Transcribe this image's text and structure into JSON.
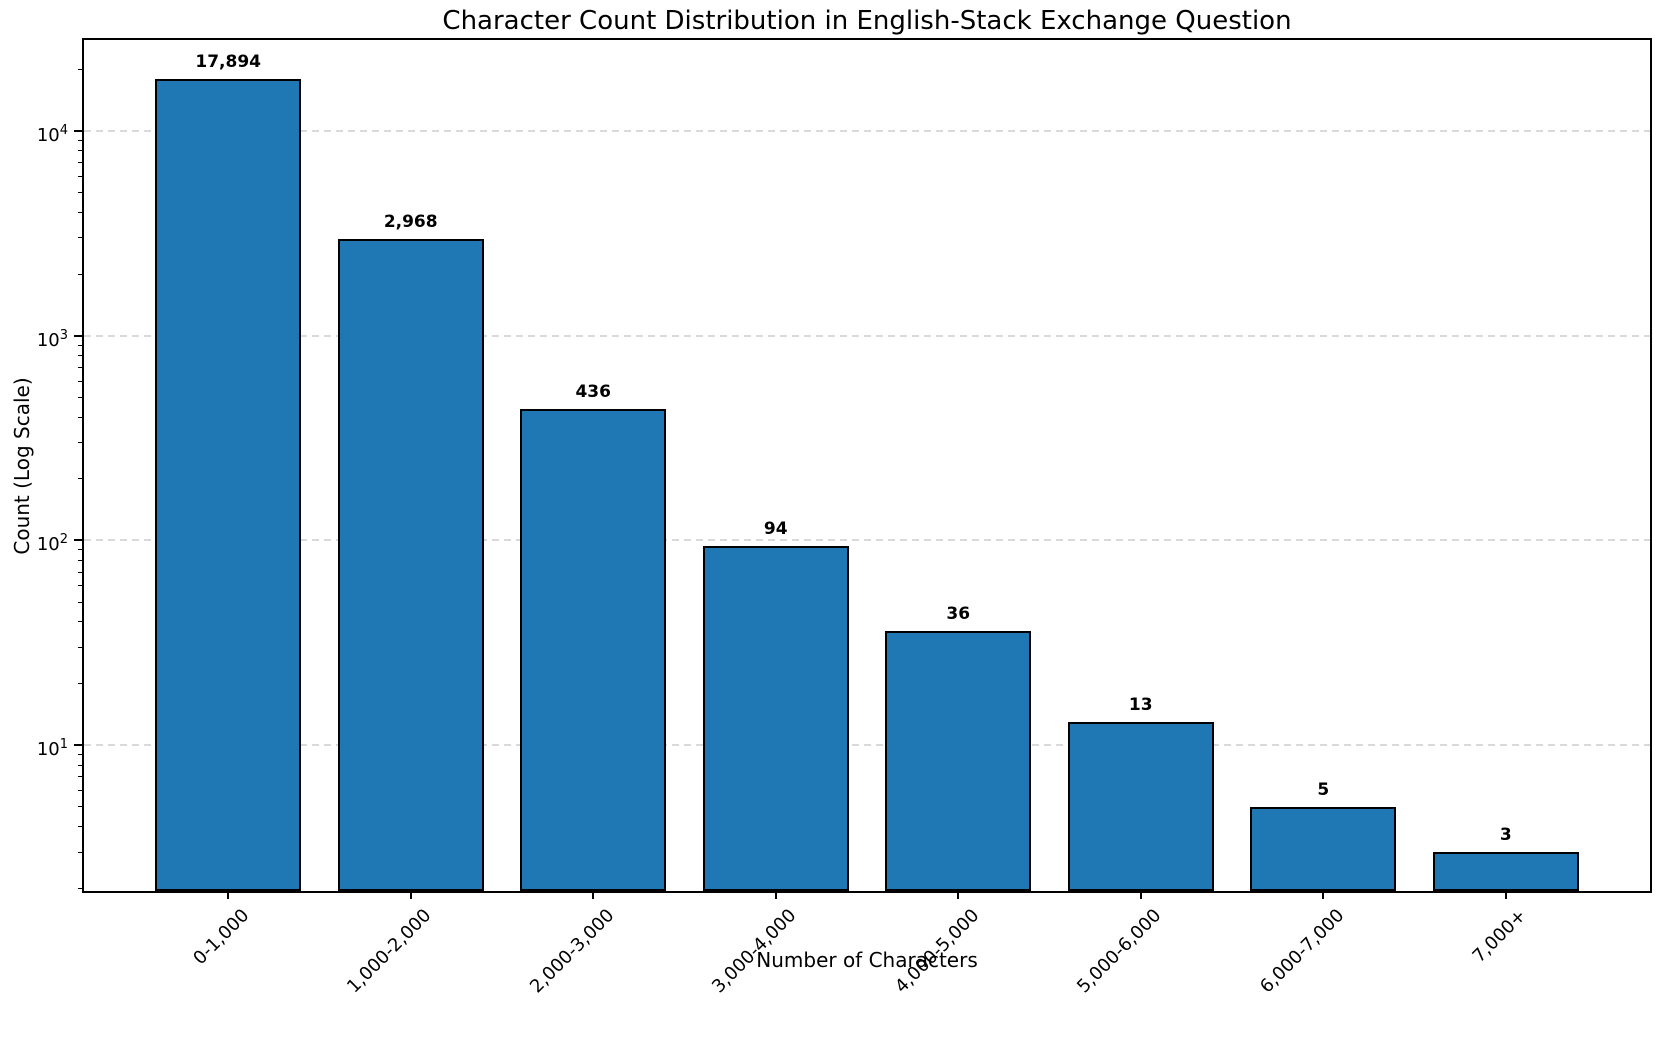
{
  "chart_data": {
    "type": "bar",
    "title": "Character Count Distribution in English-Stack Exchange Question",
    "xlabel": "Number of Characters",
    "ylabel": "Count (Log Scale)",
    "categories": [
      "0-1,000",
      "1,000-2,000",
      "2,000-3,000",
      "3,000-4,000",
      "4,000-5,000",
      "5,000-6,000",
      "6,000-7,000",
      "7,000+"
    ],
    "values": [
      17894,
      2968,
      436,
      94,
      36,
      13,
      5,
      3
    ],
    "value_labels": [
      "17,894",
      "2,968",
      "436",
      "94",
      "36",
      "13",
      "5",
      "3"
    ],
    "y_scale": "log",
    "y_tick_exponents": [
      1,
      2,
      3,
      4
    ],
    "ylim": [
      1.94,
      27800
    ],
    "x_range": [
      -0.79,
      7.79
    ],
    "bar_width_fraction": 0.8,
    "grid": "horizontal dashed at major (decade) ticks",
    "legend": "none",
    "colors": {
      "bar_fill": "#1f77b4",
      "bar_edge": "#000000",
      "grid": "#d9d9d9",
      "axis": "#000000",
      "text": "#000000",
      "background": "#ffffff"
    }
  }
}
